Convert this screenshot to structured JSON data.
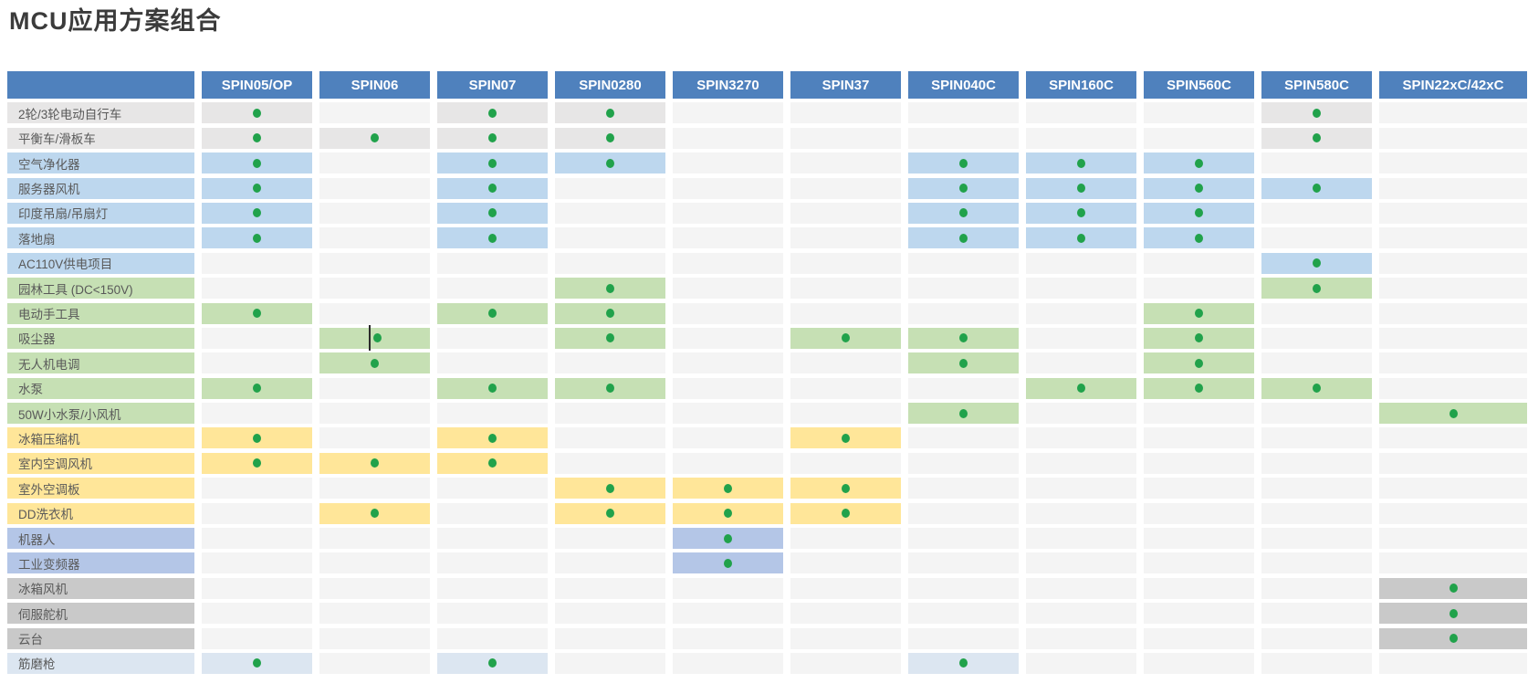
{
  "title": "MCU应用方案组合",
  "table": {
    "columns": [
      "SPIN05/OP",
      "SPIN06",
      "SPIN07",
      "SPIN0280",
      "SPIN3270",
      "SPIN37",
      "SPIN040C",
      "SPIN160C",
      "SPIN560C",
      "SPIN580C",
      "SPIN22xC/42xC"
    ],
    "rows": [
      {
        "label": "2轮/3轮电动自行车",
        "group": "gray_light",
        "dots": [
          0,
          2,
          3,
          9
        ]
      },
      {
        "label": "平衡车/滑板车",
        "group": "gray_light",
        "dots": [
          0,
          1,
          2,
          3,
          9
        ]
      },
      {
        "label": "空气净化器",
        "group": "blue",
        "dots": [
          0,
          2,
          3,
          6,
          7,
          8
        ]
      },
      {
        "label": "服务器风机",
        "group": "blue",
        "dots": [
          0,
          2,
          6,
          7,
          8,
          9
        ]
      },
      {
        "label": "印度吊扇/吊扇灯",
        "group": "blue",
        "dots": [
          0,
          2,
          6,
          7,
          8
        ]
      },
      {
        "label": "落地扇",
        "group": "blue",
        "dots": [
          0,
          2,
          6,
          7,
          8
        ]
      },
      {
        "label": "AC110V供电项目",
        "group": "blue",
        "dots": [
          9
        ]
      },
      {
        "label": "园林工具 (DC<150V)",
        "group": "green",
        "dots": [
          3,
          9
        ]
      },
      {
        "label": "电动手工具",
        "group": "green",
        "dots": [
          0,
          2,
          3,
          8
        ]
      },
      {
        "label": "吸尘器",
        "group": "green",
        "dots": [
          1,
          3,
          5,
          6,
          8
        ],
        "cursor_col": 1
      },
      {
        "label": "无人机电调",
        "group": "green",
        "dots": [
          1,
          6,
          8
        ]
      },
      {
        "label": "水泵",
        "group": "green",
        "dots": [
          0,
          2,
          3,
          7,
          8,
          9
        ]
      },
      {
        "label": "50W小水泵/小风机",
        "group": "green",
        "dots": [
          6,
          10
        ]
      },
      {
        "label": "冰箱压缩机",
        "group": "yellow",
        "dots": [
          0,
          2,
          5
        ]
      },
      {
        "label": "室内空调风机",
        "group": "yellow",
        "dots": [
          0,
          1,
          2
        ]
      },
      {
        "label": "室外空调板",
        "group": "yellow",
        "dots": [
          3,
          4,
          5
        ]
      },
      {
        "label": "DD洗衣机",
        "group": "yellow",
        "dots": [
          1,
          3,
          4,
          5
        ]
      },
      {
        "label": "机器人",
        "group": "periwinkle",
        "dots": [
          4
        ]
      },
      {
        "label": "工业变频器",
        "group": "periwinkle",
        "dots": [
          4
        ]
      },
      {
        "label": "冰箱风机",
        "group": "gray",
        "dots": [
          10
        ]
      },
      {
        "label": "伺服舵机",
        "group": "gray",
        "dots": [
          10
        ]
      },
      {
        "label": "云台",
        "group": "gray",
        "dots": [
          10
        ]
      },
      {
        "label": "筋磨枪",
        "group": "blue_pale",
        "dots": [
          0,
          2,
          6
        ]
      }
    ]
  },
  "colors": {
    "header_bg": "#4F81BD",
    "header_text": "#FFFFFF",
    "cell_base": "#F4F4F4",
    "dot": "#21A24B",
    "title_text": "#3B3B3B",
    "label_text": "#595959",
    "groups": {
      "gray_light": "#E7E6E6",
      "blue": "#BDD7EE",
      "green": "#C6E0B4",
      "yellow": "#FFE699",
      "periwinkle": "#B4C6E7",
      "gray": "#C9C9C9",
      "blue_pale": "#DCE6F1"
    }
  }
}
